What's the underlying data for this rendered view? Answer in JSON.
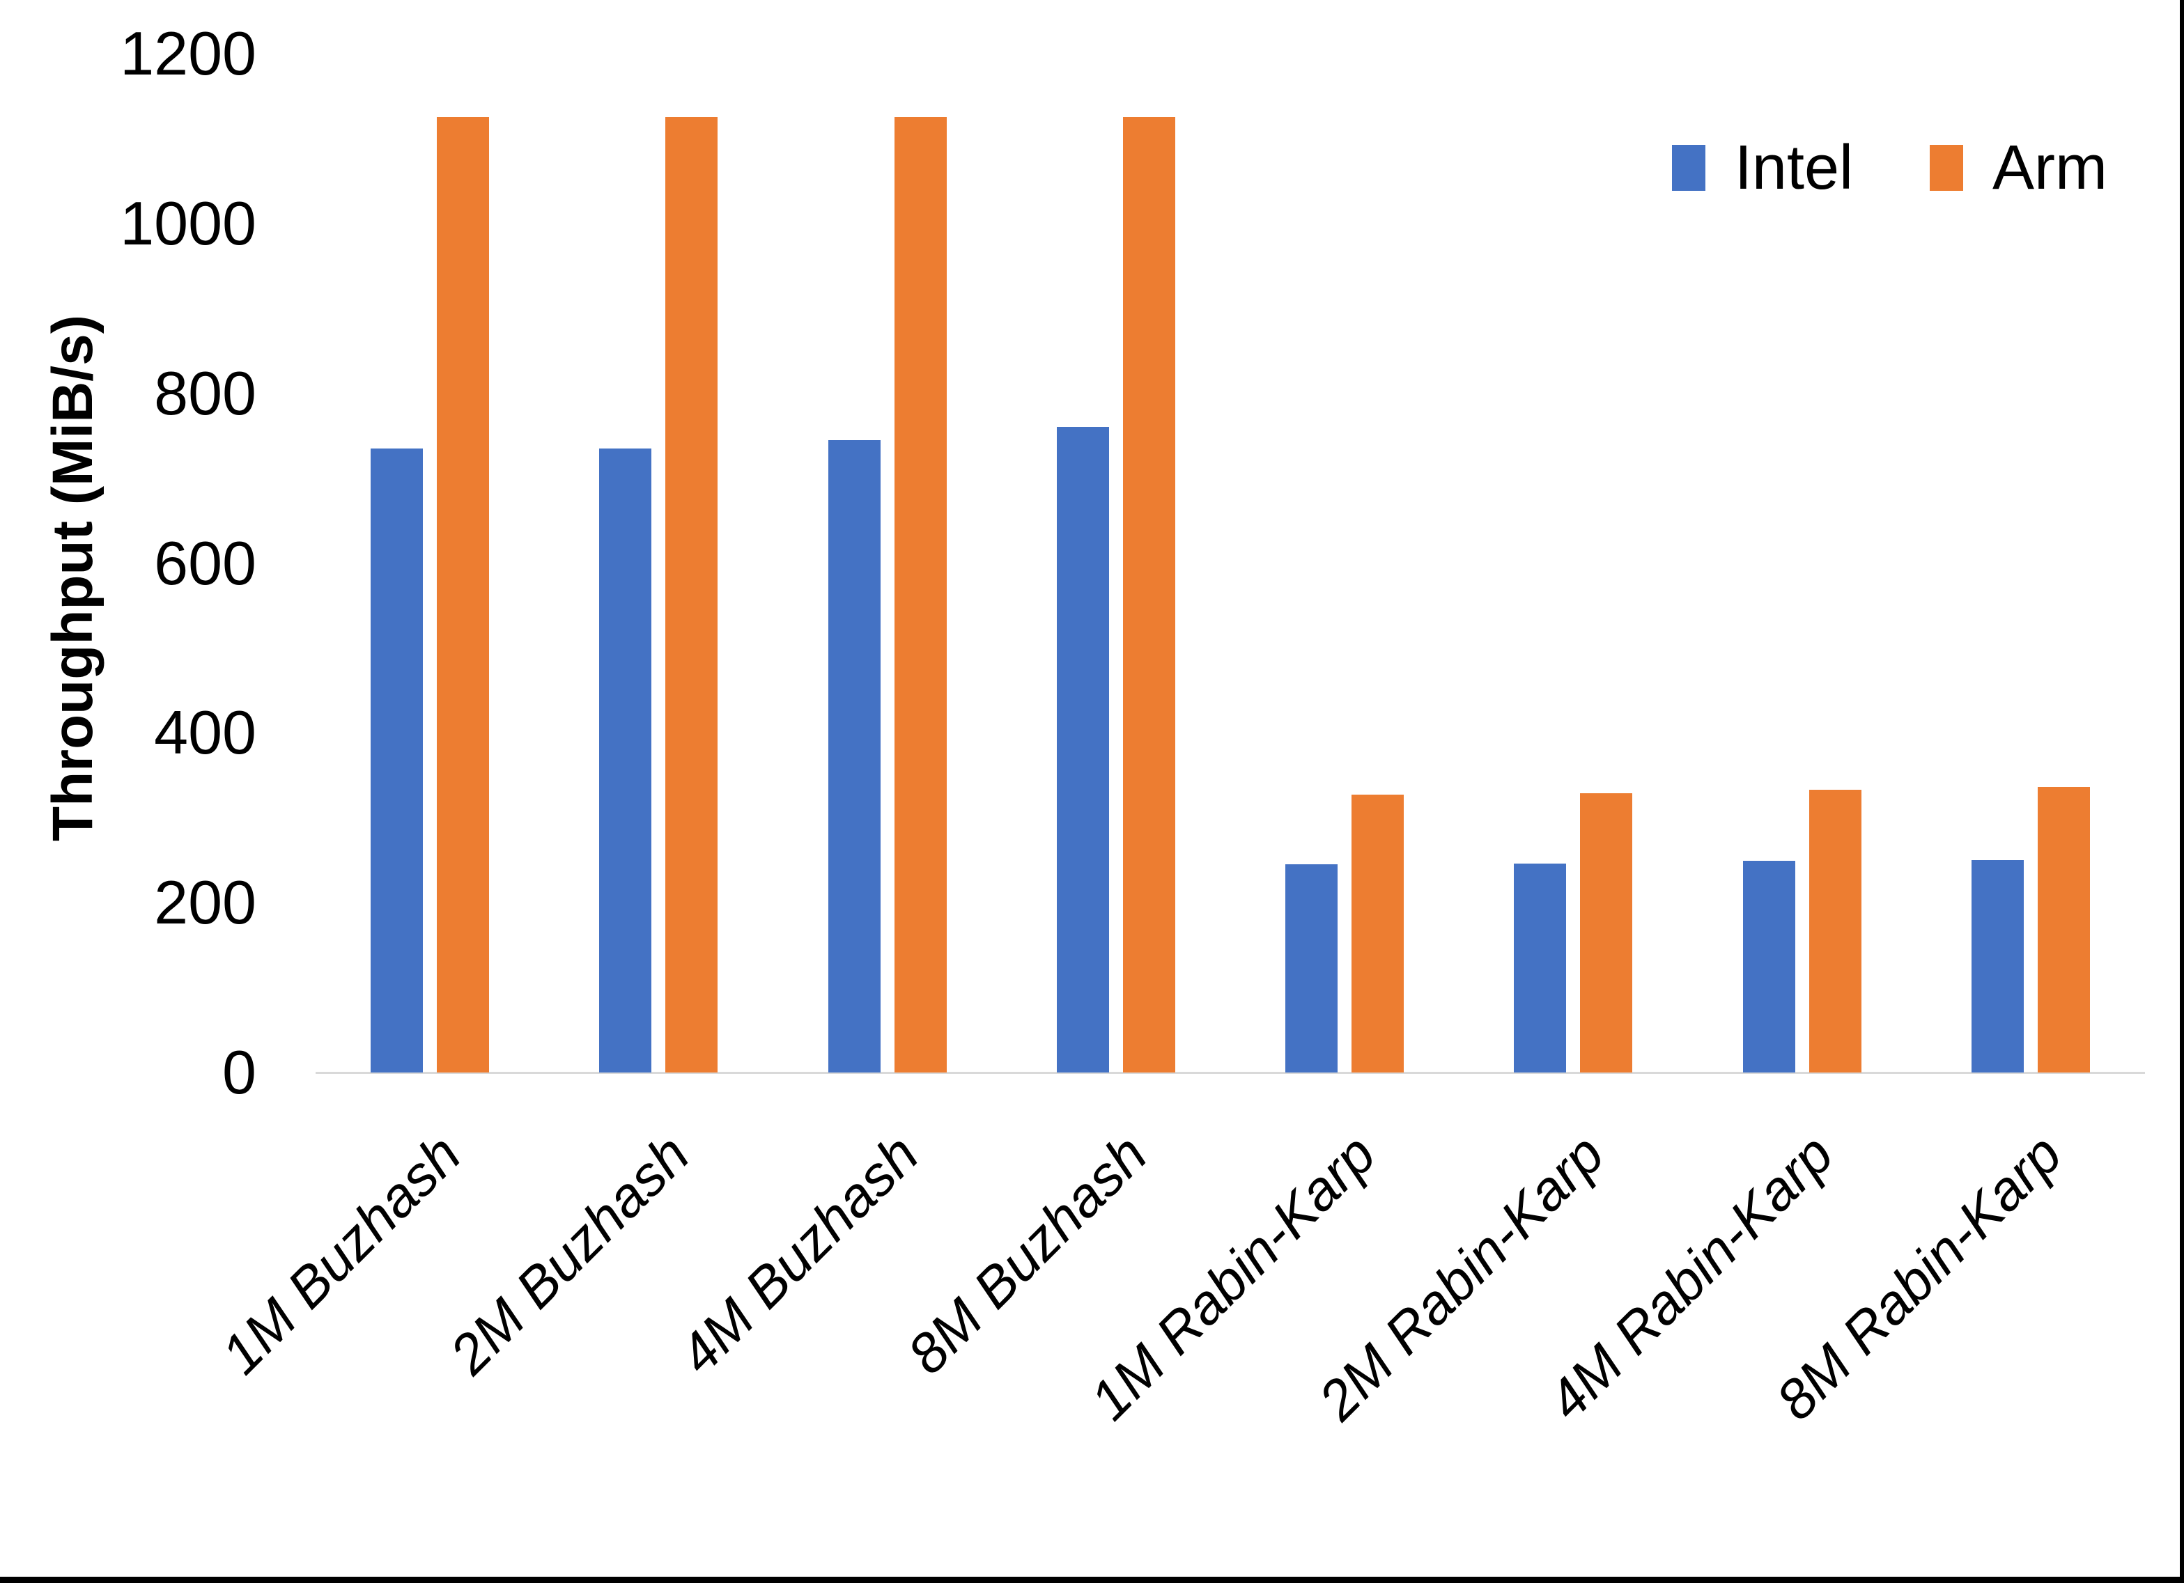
{
  "chart_data": {
    "type": "bar",
    "title": "",
    "xlabel": "",
    "ylabel": "Throughput (MiB/s)",
    "ylim": [
      0,
      1200
    ],
    "y_ticks": [
      0,
      200,
      400,
      600,
      800,
      1000,
      1200
    ],
    "grid": false,
    "legend_position": "top-right",
    "categories": [
      "1M Buzhash",
      "2M Buzhash",
      "4M Buzhash",
      "8M Buzhash",
      "1M Rabin-Karp",
      "2M Rabin-Karp",
      "4M Rabin-Karp",
      "8M Rabin-Karp"
    ],
    "series": [
      {
        "name": "Intel",
        "color": "#4472C4",
        "values": [
          735,
          735,
          745,
          760,
          245,
          246,
          249,
          250
        ]
      },
      {
        "name": "Arm",
        "color": "#ED7D31",
        "values": [
          1125,
          1125,
          1125,
          1125,
          327,
          329,
          333,
          336
        ]
      }
    ]
  },
  "frame": {
    "background": "#FFFFFF",
    "border_color": "#000000",
    "axis_line_color": "#D9D9D9",
    "text_color": "#000000"
  }
}
